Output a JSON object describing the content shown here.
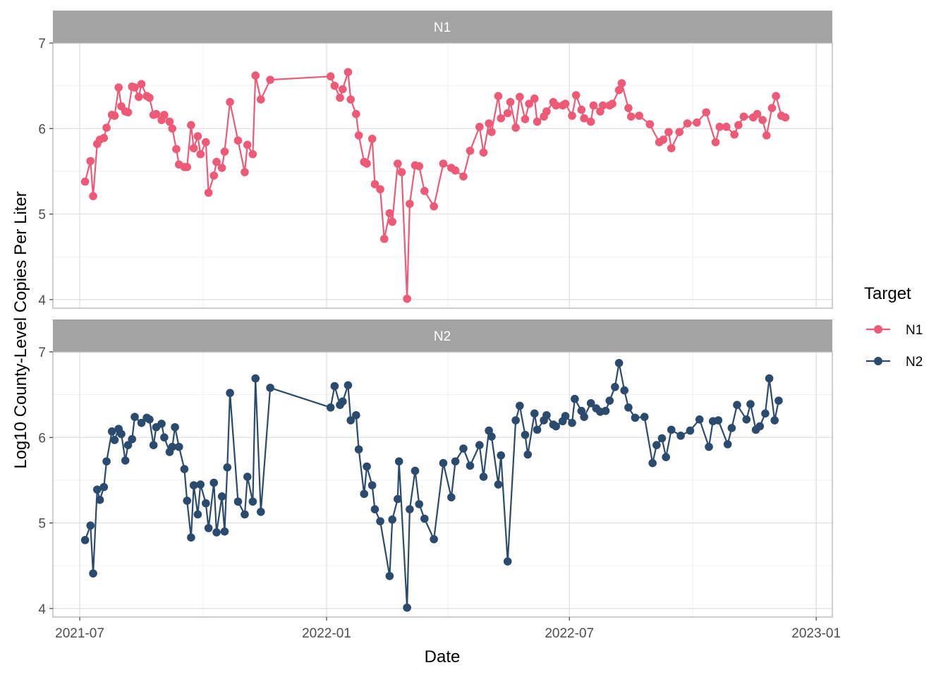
{
  "chart_data": {
    "type": "line",
    "xlabel": "Date",
    "ylabel": "Log10 County-Level Copies Per Liter",
    "x_ticks": [
      "2021-07-01",
      "2022-01-01",
      "2022-07-01",
      "2023-01-01"
    ],
    "x_tick_labels": [
      "2021-07",
      "2022-01",
      "2022-07",
      "2023-01"
    ],
    "xlim": [
      "2021-06-11",
      "2023-01-13"
    ],
    "y_ticks": [
      4,
      5,
      6,
      7
    ],
    "ylim": [
      3.9,
      7.0
    ],
    "grid": true,
    "legend": {
      "title": "Target",
      "position": "right"
    },
    "panels": [
      {
        "strip": "N1",
        "name": "N1",
        "color": "#ee5a76",
        "points": [
          [
            "2021-07-05",
            5.38
          ],
          [
            "2021-07-09",
            5.62
          ],
          [
            "2021-07-11",
            5.21
          ],
          [
            "2021-07-14",
            5.82
          ],
          [
            "2021-07-16",
            5.87
          ],
          [
            "2021-07-19",
            5.89
          ],
          [
            "2021-07-21",
            6.01
          ],
          [
            "2021-07-25",
            6.16
          ],
          [
            "2021-07-27",
            6.15
          ],
          [
            "2021-07-30",
            6.48
          ],
          [
            "2021-08-01",
            6.26
          ],
          [
            "2021-08-04",
            6.2
          ],
          [
            "2021-08-06",
            6.19
          ],
          [
            "2021-08-09",
            6.49
          ],
          [
            "2021-08-11",
            6.48
          ],
          [
            "2021-08-14",
            6.37
          ],
          [
            "2021-08-16",
            6.52
          ],
          [
            "2021-08-20",
            6.38
          ],
          [
            "2021-08-22",
            6.36
          ],
          [
            "2021-08-25",
            6.16
          ],
          [
            "2021-08-27",
            6.17
          ],
          [
            "2021-08-31",
            6.1
          ],
          [
            "2021-09-02",
            6.16
          ],
          [
            "2021-09-06",
            6.08
          ],
          [
            "2021-09-08",
            6.0
          ],
          [
            "2021-09-11",
            5.76
          ],
          [
            "2021-09-13",
            5.58
          ],
          [
            "2021-09-17",
            5.55
          ],
          [
            "2021-09-19",
            5.55
          ],
          [
            "2021-09-22",
            6.04
          ],
          [
            "2021-09-24",
            5.77
          ],
          [
            "2021-09-27",
            5.91
          ],
          [
            "2021-09-29",
            5.7
          ],
          [
            "2021-10-03",
            5.84
          ],
          [
            "2021-10-05",
            5.25
          ],
          [
            "2021-10-09",
            5.45
          ],
          [
            "2021-10-11",
            5.61
          ],
          [
            "2021-10-15",
            5.54
          ],
          [
            "2021-10-17",
            5.73
          ],
          [
            "2021-10-21",
            6.31
          ],
          [
            "2021-10-27",
            5.86
          ],
          [
            "2021-11-01",
            5.49
          ],
          [
            "2021-11-03",
            5.81
          ],
          [
            "2021-11-07",
            5.7
          ],
          [
            "2021-11-09",
            6.62
          ],
          [
            "2021-11-13",
            6.34
          ],
          [
            "2021-11-20",
            6.57
          ],
          [
            "2022-01-04",
            6.61
          ],
          [
            "2022-01-07",
            6.5
          ],
          [
            "2022-01-11",
            6.36
          ],
          [
            "2022-01-13",
            6.46
          ],
          [
            "2022-01-17",
            6.66
          ],
          [
            "2022-01-19",
            6.34
          ],
          [
            "2022-01-23",
            6.17
          ],
          [
            "2022-01-25",
            5.92
          ],
          [
            "2022-01-29",
            5.61
          ],
          [
            "2022-01-31",
            5.59
          ],
          [
            "2022-02-04",
            5.88
          ],
          [
            "2022-02-06",
            5.35
          ],
          [
            "2022-02-10",
            5.29
          ],
          [
            "2022-02-13",
            4.71
          ],
          [
            "2022-02-17",
            5.01
          ],
          [
            "2022-02-19",
            4.91
          ],
          [
            "2022-02-23",
            5.59
          ],
          [
            "2022-02-26",
            5.49
          ],
          [
            "2022-03-02",
            4.01
          ],
          [
            "2022-03-04",
            5.12
          ],
          [
            "2022-03-08",
            5.57
          ],
          [
            "2022-03-11",
            5.56
          ],
          [
            "2022-03-15",
            5.27
          ],
          [
            "2022-03-22",
            5.09
          ],
          [
            "2022-03-29",
            5.59
          ],
          [
            "2022-04-04",
            5.54
          ],
          [
            "2022-04-07",
            5.51
          ],
          [
            "2022-04-13",
            5.44
          ],
          [
            "2022-04-18",
            5.74
          ],
          [
            "2022-04-25",
            6.02
          ],
          [
            "2022-04-28",
            5.72
          ],
          [
            "2022-05-02",
            6.06
          ],
          [
            "2022-05-04",
            5.96
          ],
          [
            "2022-05-09",
            6.38
          ],
          [
            "2022-05-11",
            6.12
          ],
          [
            "2022-05-16",
            6.18
          ],
          [
            "2022-05-18",
            6.31
          ],
          [
            "2022-05-22",
            6.01
          ],
          [
            "2022-05-25",
            6.37
          ],
          [
            "2022-05-29",
            6.11
          ],
          [
            "2022-06-01",
            6.29
          ],
          [
            "2022-06-05",
            6.35
          ],
          [
            "2022-06-07",
            6.08
          ],
          [
            "2022-06-12",
            6.14
          ],
          [
            "2022-06-14",
            6.2
          ],
          [
            "2022-06-19",
            6.31
          ],
          [
            "2022-06-21",
            6.27
          ],
          [
            "2022-06-26",
            6.27
          ],
          [
            "2022-06-28",
            6.29
          ],
          [
            "2022-07-03",
            6.15
          ],
          [
            "2022-07-06",
            6.39
          ],
          [
            "2022-07-10",
            6.22
          ],
          [
            "2022-07-12",
            6.12
          ],
          [
            "2022-07-17",
            6.08
          ],
          [
            "2022-07-19",
            6.27
          ],
          [
            "2022-07-24",
            6.2
          ],
          [
            "2022-07-26",
            6.27
          ],
          [
            "2022-07-31",
            6.27
          ],
          [
            "2022-08-02",
            6.29
          ],
          [
            "2022-08-07",
            6.45
          ],
          [
            "2022-08-09",
            6.53
          ],
          [
            "2022-08-14",
            6.24
          ],
          [
            "2022-08-16",
            6.14
          ],
          [
            "2022-08-22",
            6.15
          ],
          [
            "2022-08-30",
            6.05
          ],
          [
            "2022-09-06",
            5.84
          ],
          [
            "2022-09-09",
            5.87
          ],
          [
            "2022-09-13",
            5.96
          ],
          [
            "2022-09-15",
            5.77
          ],
          [
            "2022-09-21",
            5.96
          ],
          [
            "2022-09-27",
            6.06
          ],
          [
            "2022-10-04",
            6.07
          ],
          [
            "2022-10-11",
            6.19
          ],
          [
            "2022-10-18",
            5.84
          ],
          [
            "2022-10-21",
            6.02
          ],
          [
            "2022-10-26",
            6.02
          ],
          [
            "2022-11-01",
            5.93
          ],
          [
            "2022-11-04",
            6.04
          ],
          [
            "2022-11-08",
            6.14
          ],
          [
            "2022-11-15",
            6.13
          ],
          [
            "2022-11-18",
            6.17
          ],
          [
            "2022-11-22",
            6.1
          ],
          [
            "2022-11-25",
            5.92
          ],
          [
            "2022-11-29",
            6.24
          ],
          [
            "2022-12-02",
            6.38
          ],
          [
            "2022-12-06",
            6.15
          ],
          [
            "2022-12-09",
            6.13
          ]
        ]
      },
      {
        "strip": "N2",
        "name": "N2",
        "color": "#2a4a6e",
        "points": [
          [
            "2021-07-05",
            4.8
          ],
          [
            "2021-07-09",
            4.97
          ],
          [
            "2021-07-11",
            4.41
          ],
          [
            "2021-07-14",
            5.39
          ],
          [
            "2021-07-16",
            5.27
          ],
          [
            "2021-07-19",
            5.42
          ],
          [
            "2021-07-21",
            5.72
          ],
          [
            "2021-07-25",
            6.07
          ],
          [
            "2021-07-27",
            5.97
          ],
          [
            "2021-07-30",
            6.1
          ],
          [
            "2021-08-01",
            6.04
          ],
          [
            "2021-08-04",
            5.73
          ],
          [
            "2021-08-06",
            5.91
          ],
          [
            "2021-08-09",
            5.98
          ],
          [
            "2021-08-11",
            6.24
          ],
          [
            "2021-08-16",
            6.17
          ],
          [
            "2021-08-20",
            6.23
          ],
          [
            "2021-08-22",
            6.21
          ],
          [
            "2021-08-25",
            5.91
          ],
          [
            "2021-08-27",
            6.12
          ],
          [
            "2021-08-31",
            6.16
          ],
          [
            "2021-09-02",
            6.0
          ],
          [
            "2021-09-06",
            5.83
          ],
          [
            "2021-09-08",
            5.89
          ],
          [
            "2021-09-10",
            6.12
          ],
          [
            "2021-09-13",
            5.89
          ],
          [
            "2021-09-17",
            5.63
          ],
          [
            "2021-09-19",
            5.26
          ],
          [
            "2021-09-22",
            4.83
          ],
          [
            "2021-09-24",
            5.44
          ],
          [
            "2021-09-27",
            5.1
          ],
          [
            "2021-09-29",
            5.45
          ],
          [
            "2021-10-03",
            5.23
          ],
          [
            "2021-10-05",
            4.94
          ],
          [
            "2021-10-09",
            5.47
          ],
          [
            "2021-10-11",
            4.89
          ],
          [
            "2021-10-15",
            5.31
          ],
          [
            "2021-10-17",
            4.9
          ],
          [
            "2021-10-19",
            5.65
          ],
          [
            "2021-10-21",
            6.52
          ],
          [
            "2021-10-27",
            5.25
          ],
          [
            "2021-11-01",
            5.1
          ],
          [
            "2021-11-03",
            5.54
          ],
          [
            "2021-11-07",
            5.25
          ],
          [
            "2021-11-09",
            6.69
          ],
          [
            "2021-11-13",
            5.13
          ],
          [
            "2021-11-20",
            6.58
          ],
          [
            "2022-01-04",
            6.35
          ],
          [
            "2022-01-07",
            6.6
          ],
          [
            "2022-01-11",
            6.38
          ],
          [
            "2022-01-13",
            6.42
          ],
          [
            "2022-01-17",
            6.61
          ],
          [
            "2022-01-19",
            6.2
          ],
          [
            "2022-01-23",
            6.26
          ],
          [
            "2022-01-25",
            5.86
          ],
          [
            "2022-01-29",
            5.34
          ],
          [
            "2022-01-31",
            5.66
          ],
          [
            "2022-02-04",
            5.44
          ],
          [
            "2022-02-06",
            5.16
          ],
          [
            "2022-02-10",
            5.02
          ],
          [
            "2022-02-17",
            4.38
          ],
          [
            "2022-02-19",
            5.04
          ],
          [
            "2022-02-23",
            5.28
          ],
          [
            "2022-02-24",
            5.72
          ],
          [
            "2022-03-02",
            4.01
          ],
          [
            "2022-03-04",
            5.16
          ],
          [
            "2022-03-08",
            5.61
          ],
          [
            "2022-03-11",
            5.22
          ],
          [
            "2022-03-15",
            5.05
          ],
          [
            "2022-03-22",
            4.81
          ],
          [
            "2022-03-29",
            5.7
          ],
          [
            "2022-04-04",
            5.3
          ],
          [
            "2022-04-07",
            5.72
          ],
          [
            "2022-04-13",
            5.87
          ],
          [
            "2022-04-18",
            5.67
          ],
          [
            "2022-04-25",
            5.91
          ],
          [
            "2022-04-28",
            5.54
          ],
          [
            "2022-05-02",
            6.08
          ],
          [
            "2022-05-04",
            6.01
          ],
          [
            "2022-05-09",
            5.45
          ],
          [
            "2022-05-11",
            5.79
          ],
          [
            "2022-05-16",
            4.55
          ],
          [
            "2022-05-22",
            6.2
          ],
          [
            "2022-05-25",
            6.37
          ],
          [
            "2022-05-29",
            6.03
          ],
          [
            "2022-05-31",
            5.8
          ],
          [
            "2022-06-05",
            6.28
          ],
          [
            "2022-06-07",
            6.09
          ],
          [
            "2022-06-12",
            6.2
          ],
          [
            "2022-06-14",
            6.26
          ],
          [
            "2022-06-19",
            6.15
          ],
          [
            "2022-06-21",
            6.13
          ],
          [
            "2022-06-26",
            6.19
          ],
          [
            "2022-06-28",
            6.25
          ],
          [
            "2022-07-03",
            6.17
          ],
          [
            "2022-07-05",
            6.45
          ],
          [
            "2022-07-10",
            6.31
          ],
          [
            "2022-07-12",
            6.24
          ],
          [
            "2022-07-17",
            6.4
          ],
          [
            "2022-07-21",
            6.34
          ],
          [
            "2022-07-24",
            6.3
          ],
          [
            "2022-07-28",
            6.31
          ],
          [
            "2022-07-31",
            6.43
          ],
          [
            "2022-08-04",
            6.59
          ],
          [
            "2022-08-07",
            6.87
          ],
          [
            "2022-08-11",
            6.55
          ],
          [
            "2022-08-14",
            6.35
          ],
          [
            "2022-08-19",
            6.23
          ],
          [
            "2022-08-26",
            6.24
          ],
          [
            "2022-09-01",
            5.7
          ],
          [
            "2022-09-04",
            5.91
          ],
          [
            "2022-09-08",
            5.99
          ],
          [
            "2022-09-11",
            5.77
          ],
          [
            "2022-09-15",
            6.09
          ],
          [
            "2022-09-22",
            6.02
          ],
          [
            "2022-09-29",
            6.08
          ],
          [
            "2022-10-06",
            6.21
          ],
          [
            "2022-10-13",
            5.89
          ],
          [
            "2022-10-16",
            6.19
          ],
          [
            "2022-10-20",
            6.2
          ],
          [
            "2022-10-27",
            5.92
          ],
          [
            "2022-10-30",
            6.11
          ],
          [
            "2022-11-03",
            6.38
          ],
          [
            "2022-11-10",
            6.21
          ],
          [
            "2022-11-13",
            6.39
          ],
          [
            "2022-11-17",
            6.09
          ],
          [
            "2022-11-20",
            6.13
          ],
          [
            "2022-11-24",
            6.28
          ],
          [
            "2022-11-27",
            6.69
          ],
          [
            "2022-12-01",
            6.2
          ],
          [
            "2022-12-04",
            6.43
          ]
        ]
      }
    ]
  }
}
